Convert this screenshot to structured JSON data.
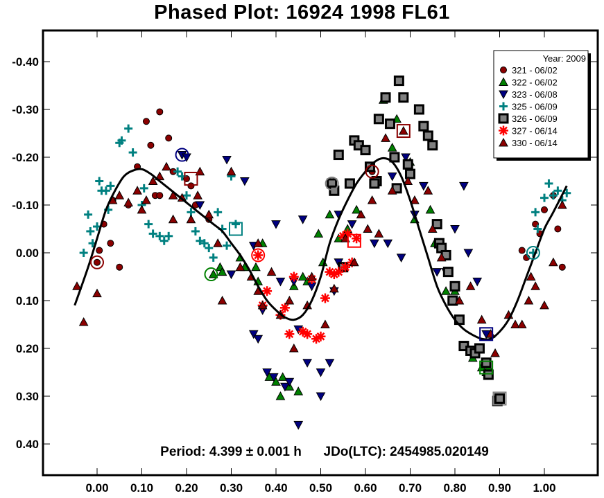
{
  "chart_data": {
    "type": "scatter",
    "title": "Phased Plot: 16924 1998 FL61",
    "xlabel": "",
    "ylabel": "",
    "xlim": [
      -0.12,
      1.12
    ],
    "ylim": [
      -0.466,
      0.465
    ],
    "y_inverted": true,
    "grid": false,
    "x_ticks": [
      0.0,
      0.1,
      0.2,
      0.3,
      0.4,
      0.5,
      0.6,
      0.7,
      0.8,
      0.9,
      1.0
    ],
    "x_tick_labels": [
      "0.00",
      "0.10",
      "0.20",
      "0.30",
      "0.40",
      "0.50",
      "0.60",
      "0.70",
      "0.80",
      "0.90",
      "1.00"
    ],
    "y_ticks": [
      -0.4,
      -0.3,
      -0.2,
      -0.1,
      0.0,
      0.1,
      0.2,
      0.3,
      0.4
    ],
    "y_tick_labels": [
      "-0.40",
      "-0.30",
      "-0.20",
      "-0.10",
      "0.00",
      "0.10",
      "0.20",
      "0.30",
      "0.40"
    ],
    "annotation": "Period: 4.399 ± 0.001 h      JDo(LTC): 2454985.020149",
    "legend": {
      "title": "Year: 2009",
      "position": "top-right"
    },
    "series": [
      {
        "name": "321 - 06/02",
        "marker": "circle",
        "color": "#8b0000",
        "x": [
          0.0,
          0.005,
          0.05,
          0.07,
          0.11,
          0.12,
          0.14,
          0.16,
          0.17,
          0.09,
          0.13,
          0.2,
          0.21,
          0.22,
          0.25,
          0.015,
          0.03,
          0.14,
          0.95,
          0.96,
          0.98,
          0.99,
          1.0,
          1.02,
          1.03,
          1.04,
          0.615,
          0.035
        ],
        "y": [
          0.02,
          -0.005,
          0.03,
          -0.1,
          -0.275,
          -0.225,
          -0.295,
          -0.24,
          -0.17,
          -0.18,
          -0.12,
          -0.155,
          -0.14,
          -0.1,
          -0.07,
          -0.06,
          -0.02,
          -0.12,
          -0.005,
          0.01,
          -0.06,
          -0.04,
          -0.09,
          -0.12,
          -0.05,
          0.03,
          -0.17,
          -0.11
        ],
        "highlight": [
          {
            "x": 0.0,
            "y": 0.02,
            "shape": "circle"
          },
          {
            "x": 0.21,
            "y": -0.155,
            "shape": "square"
          }
        ]
      },
      {
        "name": "322 - 06/02",
        "marker": "triangle-up",
        "color": "#008000",
        "x": [
          0.26,
          0.275,
          0.28,
          0.32,
          0.33,
          0.355,
          0.36,
          0.385,
          0.4,
          0.415,
          0.43,
          0.45,
          0.46,
          0.47,
          0.44,
          0.495,
          0.505,
          0.54,
          0.56,
          0.64,
          0.66,
          0.67,
          0.7,
          0.71,
          0.755,
          0.745,
          0.78,
          0.8,
          0.84,
          0.86,
          0.87,
          0.875,
          0.37,
          0.41,
          0.52,
          0.58
        ],
        "y": [
          0.045,
          0.03,
          0.04,
          0.01,
          0.03,
          0.03,
          0.06,
          0.26,
          0.27,
          0.26,
          0.28,
          0.29,
          0.05,
          0.06,
          0.07,
          -0.04,
          0.02,
          -0.03,
          -0.05,
          -0.32,
          -0.22,
          -0.28,
          -0.19,
          -0.07,
          -0.02,
          -0.09,
          0.08,
          0.08,
          0.22,
          0.24,
          0.25,
          0.24,
          -0.02,
          0.3,
          -0.08,
          -0.09
        ],
        "highlight": [
          {
            "x": 0.255,
            "y": 0.045,
            "shape": "circle"
          },
          {
            "x": 0.87,
            "y": 0.24,
            "shape": "square"
          }
        ]
      },
      {
        "name": "323 - 06/08",
        "marker": "triangle-down",
        "color": "#000080",
        "x": [
          0.19,
          0.2,
          0.23,
          0.29,
          0.3,
          0.33,
          0.4,
          0.41,
          0.44,
          0.45,
          0.35,
          0.36,
          0.38,
          0.42,
          0.47,
          0.5,
          0.5,
          0.52,
          0.37,
          0.395,
          0.43,
          0.45,
          0.46,
          0.48,
          0.53,
          0.54,
          0.57,
          0.625,
          0.66,
          0.69,
          0.71,
          0.73,
          0.76,
          0.78,
          0.8,
          0.82,
          0.83,
          0.85,
          0.87,
          0.35,
          0.54,
          0.62,
          0.65,
          0.68
        ],
        "y": [
          -0.205,
          -0.2,
          -0.1,
          -0.195,
          0.045,
          -0.15,
          -0.06,
          0.06,
          0.06,
          0.16,
          0.17,
          0.18,
          0.25,
          0.28,
          0.23,
          0.25,
          0.3,
          0.23,
          0.12,
          0.26,
          0.27,
          0.36,
          -0.07,
          0.07,
          0.08,
          0.02,
          -0.06,
          -0.15,
          -0.16,
          -0.2,
          -0.08,
          -0.14,
          0.04,
          0.04,
          -0.05,
          -0.14,
          0.0,
          0.06,
          0.17,
          -0.015,
          -0.08,
          -0.02,
          -0.02,
          0.01
        ],
        "highlight": [
          {
            "x": 0.19,
            "y": -0.205,
            "shape": "circle"
          },
          {
            "x": 0.87,
            "y": 0.17,
            "shape": "square"
          }
        ]
      },
      {
        "name": "325 - 06/09",
        "marker": "plus",
        "color": "#008080",
        "x": [
          -0.03,
          -0.02,
          -0.01,
          0.0,
          0.01,
          0.025,
          0.05,
          0.055,
          0.07,
          0.08,
          0.1,
          0.105,
          0.115,
          0.125,
          0.14,
          0.15,
          0.16,
          0.18,
          0.19,
          0.2,
          0.21,
          0.22,
          0.23,
          0.24,
          0.25,
          0.27,
          0.28,
          0.29,
          0.3,
          0.26,
          -0.015,
          0.005,
          0.02,
          0.03,
          0.975,
          0.98,
          0.985,
          1.0,
          1.01,
          1.02,
          1.03,
          1.04,
          1.05,
          0.31
        ],
        "y": [
          0.0,
          -0.08,
          -0.02,
          -0.055,
          -0.13,
          -0.09,
          -0.23,
          -0.235,
          -0.26,
          -0.21,
          -0.1,
          -0.135,
          -0.06,
          -0.04,
          -0.035,
          -0.025,
          -0.035,
          -0.17,
          -0.16,
          -0.12,
          -0.085,
          -0.045,
          -0.025,
          -0.02,
          -0.01,
          -0.085,
          -0.05,
          -0.015,
          -0.16,
          0.01,
          -0.045,
          -0.15,
          -0.13,
          -0.14,
          0.0,
          -0.085,
          -0.05,
          -0.115,
          -0.145,
          -0.12,
          -0.13,
          -0.11,
          -0.125,
          -0.06
        ],
        "highlight": [
          {
            "x": 0.975,
            "y": 0.0,
            "shape": "circle"
          },
          {
            "x": 0.31,
            "y": -0.05,
            "shape": "square"
          }
        ]
      },
      {
        "name": "326 - 06/09",
        "marker": "square",
        "color": "#808080",
        "x": [
          0.525,
          0.53,
          0.54,
          0.55,
          0.565,
          0.575,
          0.585,
          0.6,
          0.61,
          0.625,
          0.63,
          0.645,
          0.655,
          0.665,
          0.675,
          0.685,
          0.695,
          0.7,
          0.72,
          0.73,
          0.74,
          0.75,
          0.76,
          0.765,
          0.77,
          0.78,
          0.785,
          0.795,
          0.8,
          0.81,
          0.82,
          0.835,
          0.845,
          0.855,
          0.87,
          0.875,
          0.895,
          0.9,
          0.67,
          0.62
        ],
        "y": [
          -0.145,
          -0.13,
          -0.205,
          0.03,
          -0.145,
          -0.235,
          -0.225,
          -0.215,
          -0.18,
          -0.15,
          -0.28,
          -0.325,
          -0.27,
          -0.2,
          -0.36,
          -0.325,
          -0.185,
          -0.165,
          -0.3,
          -0.265,
          -0.245,
          -0.225,
          -0.06,
          -0.02,
          -0.01,
          0.005,
          0.04,
          0.1,
          0.07,
          0.14,
          0.195,
          0.205,
          0.21,
          0.2,
          0.23,
          0.255,
          0.31,
          0.305,
          -0.135,
          -0.145
        ],
        "highlight": [
          {
            "x": 0.525,
            "y": -0.145,
            "shape": "circle"
          },
          {
            "x": 0.9,
            "y": 0.305,
            "shape": "square"
          }
        ]
      },
      {
        "name": "327 - 06/14",
        "marker": "asterisk",
        "color": "#ff0000",
        "x": [
          0.36,
          0.37,
          0.38,
          0.41,
          0.43,
          0.44,
          0.46,
          0.48,
          0.49,
          0.5,
          0.52,
          0.53,
          0.54,
          0.55,
          0.56,
          0.57,
          0.58,
          0.51,
          0.47,
          0.42,
          0.555
        ],
        "y": [
          0.005,
          0.11,
          0.08,
          0.13,
          0.17,
          0.05,
          0.165,
          0.055,
          0.18,
          0.175,
          0.04,
          0.045,
          0.04,
          -0.035,
          -0.04,
          0.02,
          -0.03,
          0.095,
          0.17,
          0.115,
          0.03
        ],
        "highlight": [
          {
            "x": 0.36,
            "y": 0.005,
            "shape": "circle"
          },
          {
            "x": 0.575,
            "y": -0.025,
            "shape": "square"
          }
        ]
      },
      {
        "name": "330 - 06/14",
        "marker": "triangle-up",
        "color": "#8b0000",
        "x": [
          -0.045,
          -0.03,
          0.0,
          0.035,
          0.05,
          0.07,
          0.09,
          0.11,
          0.125,
          0.14,
          0.155,
          0.17,
          0.19,
          0.21,
          0.23,
          0.25,
          0.27,
          0.28,
          0.32,
          0.345,
          0.36,
          0.37,
          0.39,
          0.41,
          0.43,
          0.44,
          0.47,
          0.48,
          0.51,
          0.53,
          0.555,
          0.575,
          0.59,
          0.605,
          0.615,
          0.63,
          0.645,
          0.66,
          0.685,
          0.695,
          0.71,
          0.74,
          0.75,
          0.77,
          0.81,
          0.835,
          0.86,
          0.89,
          0.92,
          0.935,
          0.965,
          0.97,
          1.0,
          1.02,
          0.88,
          0.95,
          0.98,
          1.04,
          0.225,
          0.17,
          0.1,
          0.3,
          0.36
        ],
        "y": [
          0.07,
          0.145,
          0.085,
          -0.11,
          -0.12,
          -0.105,
          -0.13,
          -0.11,
          -0.15,
          -0.16,
          -0.18,
          -0.07,
          -0.115,
          -0.07,
          -0.17,
          -0.08,
          -0.02,
          0.1,
          0.03,
          0.05,
          0.08,
          0.11,
          0.04,
          0.13,
          0.1,
          0.2,
          0.11,
          0.05,
          0.15,
          0.075,
          -0.03,
          0.02,
          -0.08,
          -0.05,
          -0.11,
          -0.04,
          -0.24,
          -0.13,
          -0.255,
          -0.15,
          -0.11,
          -0.13,
          -0.05,
          0.01,
          0.1,
          0.07,
          0.14,
          0.21,
          0.13,
          0.15,
          0.1,
          0.05,
          0.11,
          0.02,
          0.17,
          0.15,
          0.07,
          -0.1,
          -0.12,
          -0.12,
          -0.09,
          -0.17,
          -0.02
        ],
        "highlight": [
          {
            "x": 0.685,
            "y": -0.255,
            "shape": "square"
          },
          {
            "x": 0.615,
            "y": -0.17,
            "shape": "circle"
          }
        ]
      }
    ],
    "fit_curve": {
      "name": "Fourier fit",
      "color": "#000000",
      "x": [
        -0.05,
        -0.02,
        0.0,
        0.02,
        0.04,
        0.06,
        0.08,
        0.1,
        0.12,
        0.14,
        0.16,
        0.18,
        0.2,
        0.22,
        0.24,
        0.26,
        0.28,
        0.3,
        0.32,
        0.34,
        0.36,
        0.38,
        0.4,
        0.42,
        0.44,
        0.46,
        0.48,
        0.5,
        0.52,
        0.54,
        0.56,
        0.58,
        0.6,
        0.62,
        0.64,
        0.66,
        0.68,
        0.7,
        0.72,
        0.74,
        0.76,
        0.78,
        0.8,
        0.82,
        0.84,
        0.86,
        0.88,
        0.9,
        0.92,
        0.94,
        0.96,
        0.98,
        1.0,
        1.02,
        1.05
      ],
      "y": [
        0.11,
        0.03,
        -0.03,
        -0.09,
        -0.13,
        -0.16,
        -0.172,
        -0.175,
        -0.165,
        -0.15,
        -0.135,
        -0.12,
        -0.105,
        -0.09,
        -0.075,
        -0.06,
        -0.045,
        -0.02,
        0.005,
        0.035,
        0.07,
        0.1,
        0.12,
        0.135,
        0.14,
        0.13,
        0.1,
        0.05,
        -0.02,
        -0.07,
        -0.11,
        -0.145,
        -0.17,
        -0.19,
        -0.198,
        -0.19,
        -0.16,
        -0.11,
        -0.05,
        0.01,
        0.07,
        0.11,
        0.14,
        0.16,
        0.172,
        0.18,
        0.18,
        0.165,
        0.14,
        0.1,
        0.05,
        0.0,
        -0.05,
        -0.085,
        -0.14
      ]
    }
  }
}
